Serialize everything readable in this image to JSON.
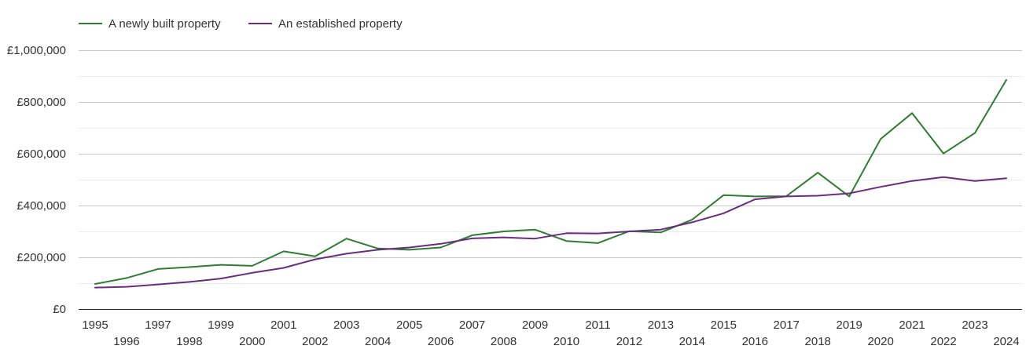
{
  "chart_data": {
    "type": "line",
    "x": [
      1995,
      1996,
      1997,
      1998,
      1999,
      2000,
      2001,
      2002,
      2003,
      2004,
      2005,
      2006,
      2007,
      2008,
      2009,
      2010,
      2011,
      2012,
      2013,
      2014,
      2015,
      2016,
      2017,
      2018,
      2019,
      2020,
      2021,
      2022,
      2023,
      2024
    ],
    "x_tick_labels": [
      "1995",
      "1996",
      "1997",
      "1998",
      "1999",
      "2000",
      "2001",
      "2002",
      "2003",
      "2004",
      "2005",
      "2006",
      "2007",
      "2008",
      "2009",
      "2010",
      "2011",
      "2012",
      "2013",
      "2014",
      "2015",
      "2016",
      "2017",
      "2018",
      "2019",
      "2020",
      "2021",
      "2022",
      "2023",
      "2024"
    ],
    "series": [
      {
        "name": "A newly built property",
        "color": "#2e7d32",
        "values": [
          97000,
          120000,
          155000,
          162000,
          171000,
          167000,
          223000,
          204000,
          272000,
          234000,
          229000,
          238000,
          285000,
          300000,
          307000,
          263000,
          255000,
          301000,
          296000,
          345000,
          440000,
          435000,
          436000,
          527000,
          435000,
          657000,
          757000,
          601000,
          680000,
          885000
        ]
      },
      {
        "name": "An established property",
        "color": "#6a2c7f",
        "values": [
          83000,
          86000,
          95000,
          105000,
          118000,
          140000,
          159000,
          192000,
          214000,
          229000,
          238000,
          252000,
          273000,
          277000,
          272000,
          293000,
          292000,
          300000,
          307000,
          335000,
          370000,
          424000,
          435000,
          438000,
          447000,
          472000,
          495000,
          510000,
          495000,
          505000
        ]
      }
    ],
    "y_tick_labels": [
      "£0",
      "£200,000",
      "£400,000",
      "£600,000",
      "£800,000",
      "£1,000,000"
    ],
    "y_ticks": [
      0,
      200000,
      400000,
      600000,
      800000,
      1000000
    ],
    "ylim": [
      0,
      1000000
    ],
    "grid": true,
    "legend_position": "top-left",
    "title": "",
    "xlabel": "",
    "ylabel": ""
  }
}
